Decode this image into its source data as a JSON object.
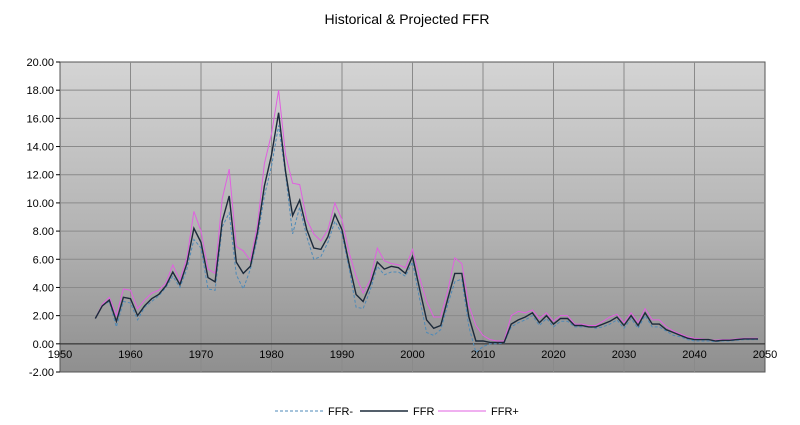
{
  "chart_data": {
    "type": "line",
    "title": "Historical & Projected FFR",
    "xlabel": "",
    "ylabel": "",
    "xlim": [
      1950,
      2050
    ],
    "ylim": [
      -2,
      20
    ],
    "x_ticks": [
      "1950",
      "1960",
      "1970",
      "1980",
      "1990",
      "2000",
      "2010",
      "2020",
      "2030",
      "2040",
      "2050"
    ],
    "y_ticks": [
      "20.00",
      "18.00",
      "16.00",
      "14.00",
      "12.00",
      "10.00",
      "8.00",
      "6.00",
      "4.00",
      "2.00",
      "0.00",
      "-2.00"
    ],
    "grid": true,
    "legend_position": "bottom",
    "x": [
      1955,
      1956,
      1957,
      1958,
      1959,
      1960,
      1961,
      1962,
      1963,
      1964,
      1965,
      1966,
      1967,
      1968,
      1969,
      1970,
      1971,
      1972,
      1973,
      1974,
      1975,
      1976,
      1977,
      1978,
      1979,
      1980,
      1981,
      1982,
      1983,
      1984,
      1985,
      1986,
      1987,
      1988,
      1989,
      1990,
      1991,
      1992,
      1993,
      1994,
      1995,
      1996,
      1997,
      1998,
      1999,
      2000,
      2001,
      2002,
      2003,
      2004,
      2005,
      2006,
      2007,
      2008,
      2009,
      2010,
      2011,
      2012,
      2013,
      2014,
      2015,
      2016,
      2017,
      2018,
      2019,
      2020,
      2021,
      2022,
      2023,
      2024,
      2025,
      2026,
      2027,
      2028,
      2029,
      2030,
      2031,
      2032,
      2033,
      2034,
      2035,
      2036,
      2037,
      2038,
      2039,
      2040,
      2041,
      2042,
      2043,
      2044,
      2045,
      2046,
      2047,
      2048,
      2049
    ],
    "series": [
      {
        "name": "FFR-",
        "color": "#4e8ab8",
        "dash": "3,2",
        "values": [
          1.8,
          2.7,
          3.0,
          1.2,
          3.0,
          2.9,
          1.7,
          2.6,
          3.0,
          3.4,
          4.0,
          4.8,
          4.0,
          5.3,
          7.4,
          6.8,
          3.9,
          3.8,
          8.3,
          9.3,
          4.9,
          3.9,
          5.3,
          7.5,
          10.5,
          12.6,
          15.5,
          12.0,
          7.8,
          9.7,
          7.6,
          6.0,
          6.2,
          7.2,
          8.7,
          7.8,
          5.4,
          2.6,
          2.5,
          3.8,
          5.5,
          4.9,
          5.1,
          5.1,
          4.8,
          5.8,
          3.2,
          0.8,
          0.6,
          1.0,
          2.8,
          4.4,
          4.6,
          1.2,
          -0.6,
          -0.2,
          0.0,
          0.0,
          0.05,
          1.2,
          1.5,
          1.7,
          2.0,
          1.3,
          1.8,
          1.2,
          1.6,
          1.6,
          1.2,
          1.2,
          1.2,
          1.1,
          1.2,
          1.4,
          1.7,
          1.1,
          1.8,
          1.1,
          2.0,
          1.2,
          1.2,
          0.9,
          0.6,
          0.5,
          0.3,
          0.2,
          0.2,
          0.2,
          0.15,
          0.2,
          0.2,
          0.25,
          0.3,
          0.3,
          0.3
        ]
      },
      {
        "name": "FFR",
        "color": "#1c2a3a",
        "dash": "",
        "values": [
          1.8,
          2.7,
          3.1,
          1.6,
          3.3,
          3.2,
          2.0,
          2.7,
          3.2,
          3.5,
          4.1,
          5.1,
          4.2,
          5.7,
          8.2,
          7.2,
          4.7,
          4.4,
          8.7,
          10.5,
          5.8,
          5.0,
          5.5,
          7.9,
          11.2,
          13.4,
          16.4,
          12.2,
          9.1,
          10.2,
          8.1,
          6.8,
          6.7,
          7.6,
          9.2,
          8.1,
          5.7,
          3.5,
          3.0,
          4.2,
          5.8,
          5.3,
          5.5,
          5.4,
          5.0,
          6.2,
          3.9,
          1.7,
          1.1,
          1.3,
          3.2,
          5.0,
          5.0,
          1.9,
          0.2,
          0.2,
          0.1,
          0.1,
          0.1,
          1.4,
          1.7,
          1.9,
          2.2,
          1.5,
          2.0,
          1.4,
          1.8,
          1.8,
          1.3,
          1.3,
          1.2,
          1.2,
          1.4,
          1.6,
          1.9,
          1.3,
          2.0,
          1.3,
          2.2,
          1.4,
          1.4,
          1.0,
          0.8,
          0.6,
          0.4,
          0.3,
          0.3,
          0.3,
          0.2,
          0.25,
          0.25,
          0.3,
          0.35,
          0.35,
          0.35
        ]
      },
      {
        "name": "FFR+",
        "color": "#e060e0",
        "dash": "",
        "values": [
          1.8,
          2.8,
          3.3,
          2.0,
          3.9,
          3.8,
          2.5,
          3.1,
          3.6,
          3.8,
          4.3,
          5.6,
          4.5,
          6.1,
          9.4,
          8.0,
          5.3,
          5.0,
          10.3,
          12.4,
          6.9,
          6.6,
          5.9,
          8.4,
          12.8,
          14.9,
          18.0,
          13.4,
          11.4,
          11.3,
          8.8,
          7.8,
          7.3,
          8.1,
          10.0,
          8.8,
          6.5,
          4.8,
          3.6,
          4.5,
          6.8,
          5.9,
          5.7,
          5.6,
          5.4,
          6.7,
          4.7,
          3.0,
          1.9,
          1.9,
          3.8,
          6.1,
          5.7,
          2.7,
          1.3,
          0.6,
          0.3,
          0.2,
          0.2,
          2.0,
          2.3,
          2.2,
          2.4,
          1.8,
          2.2,
          1.6,
          2.0,
          2.0,
          1.4,
          1.4,
          1.3,
          1.3,
          1.6,
          1.9,
          2.1,
          1.5,
          2.2,
          1.5,
          2.5,
          1.7,
          1.7,
          1.2,
          0.9,
          0.7,
          0.5,
          0.4,
          0.35,
          0.3,
          0.25,
          0.3,
          0.3,
          0.35,
          0.4,
          0.4,
          0.4
        ]
      }
    ]
  }
}
